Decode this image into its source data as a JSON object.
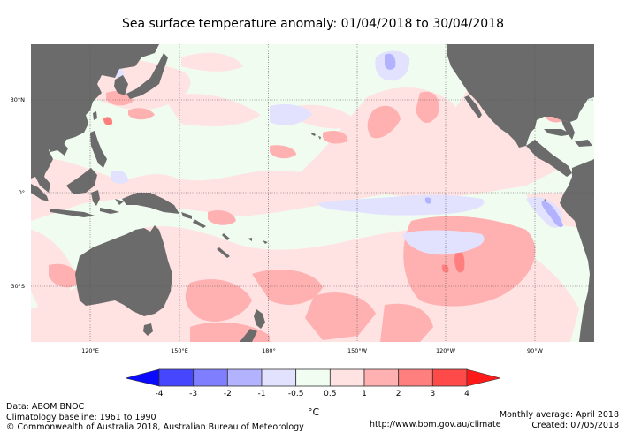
{
  "title": "Sea surface temperature anomaly: 01/04/2018 to 30/04/2018",
  "map": {
    "lat_labels": [
      "30°N",
      "0°",
      "30°S"
    ],
    "lon_labels": [
      "120°E",
      "150°E",
      "180°",
      "150°W",
      "120°W",
      "90°W"
    ],
    "colors": {
      "land": "#6b6b6b",
      "ocean_neutral": "#f0fcf0",
      "gridline": "#555555"
    }
  },
  "legend": {
    "unit": "°C",
    "ticks": [
      "-4",
      "-3",
      "-2",
      "-1",
      "-0.5",
      "0.5",
      "1",
      "2",
      "3",
      "4"
    ],
    "colors": [
      "#0a0aff",
      "#4646ff",
      "#7e7eff",
      "#b2b2ff",
      "#e2e2ff",
      "#f2fdf2",
      "#ffe2e2",
      "#ffb0b0",
      "#ff7e7e",
      "#ff4a4a",
      "#ff1a1a"
    ]
  },
  "footer": {
    "data_source": "Data: ABOM BNOC",
    "baseline": "Climatology baseline: 1961 to 1990",
    "copyright": "© Commonwealth of Australia 2018, Australian Bureau of Meteorology",
    "url": "http://www.bom.gov.au/climate",
    "monthly": "Monthly average: April 2018",
    "created": "Created: 07/05/2018"
  }
}
